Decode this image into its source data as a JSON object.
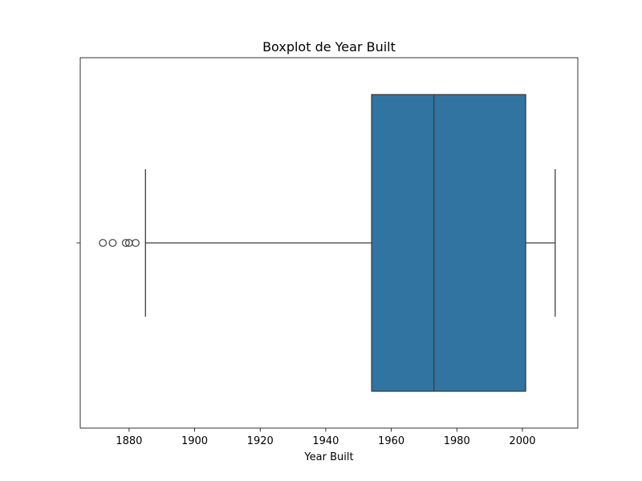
{
  "chart_data": {
    "type": "boxplot",
    "title": "Boxplot de Year Built",
    "xlabel": "Year Built",
    "ylabel": "",
    "orientation": "horizontal",
    "xlim": [
      1865.1,
      2016.9
    ],
    "xticks": [
      1880,
      1900,
      1920,
      1940,
      1960,
      1980,
      2000
    ],
    "xtick_labels": [
      "1880",
      "1900",
      "1920",
      "1940",
      "1960",
      "1980",
      "2000"
    ],
    "grid": false,
    "legend": "none",
    "box": {
      "whisker_low": 1885,
      "q1": 1954,
      "median": 1973,
      "q3": 2001,
      "whisker_high": 2010,
      "outliers": [
        1872,
        1875,
        1879,
        1880,
        1882
      ]
    },
    "colors": {
      "box_fill": "#3274a1",
      "line": "#3d3d3d",
      "axes": "#000000",
      "background": "#ffffff"
    }
  }
}
